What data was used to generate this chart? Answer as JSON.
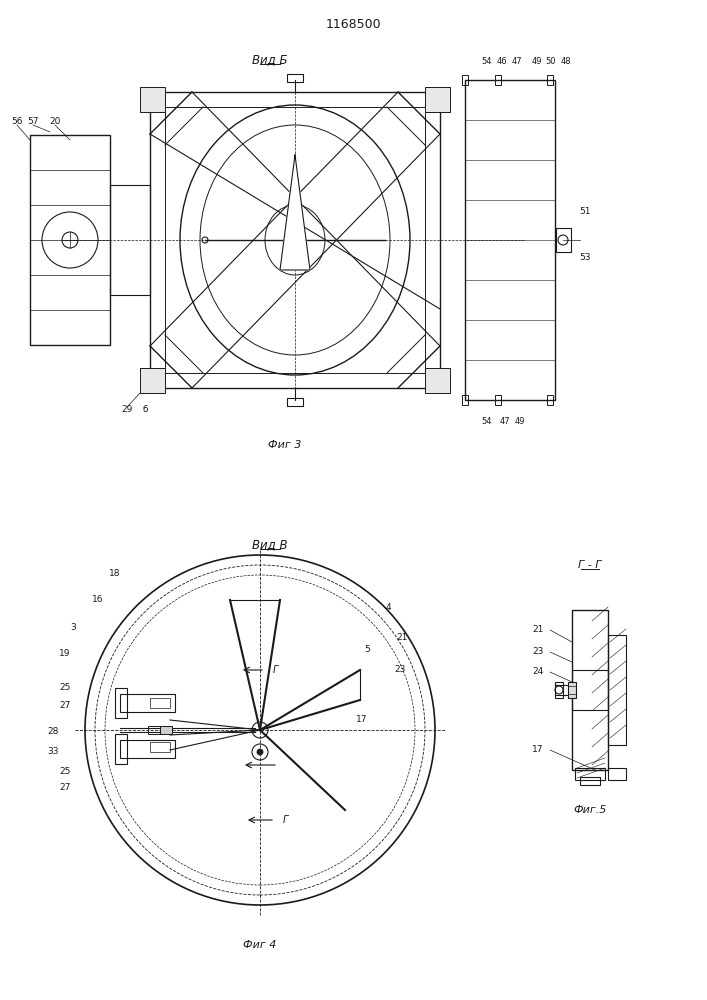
{
  "title": "1168500",
  "bg_color": "#ffffff",
  "line_color": "#1a1a1a",
  "fig3_label": "Вид Б",
  "fig4_label": "Вид В",
  "fig3_caption": "Фиг 3",
  "fig4_caption": "Фиг 4",
  "fig5_caption": "Фиг.5",
  "fig5_section": "Г - Г"
}
